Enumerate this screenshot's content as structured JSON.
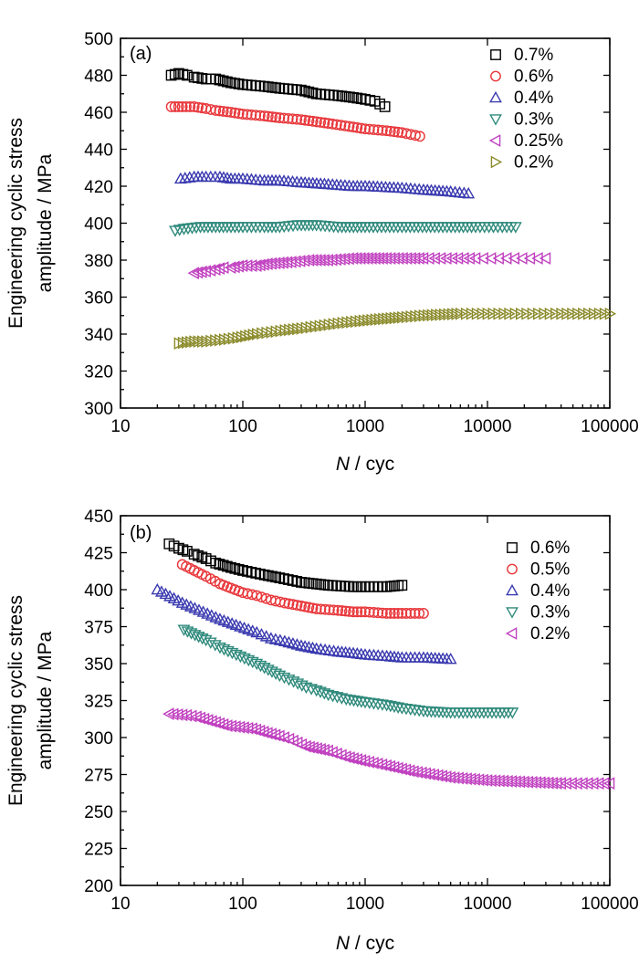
{
  "chart_data": [
    {
      "type": "scatter",
      "panel_label": "(a)",
      "xscale": "log",
      "xlim": [
        10,
        100000
      ],
      "ylim": [
        300,
        500
      ],
      "x_ticks": [
        "10",
        "100",
        "1000",
        "10000",
        "100000"
      ],
      "y_ticks": [
        "300",
        "320",
        "340",
        "360",
        "380",
        "400",
        "420",
        "440",
        "460",
        "480",
        "500"
      ],
      "ylabel_line1": "Engineering cyclic stress",
      "ylabel_line2": "amplitude / MPa",
      "xlabel_italic": "N",
      "xlabel_rest": " / cyc",
      "legend_position": "top-right",
      "series": [
        {
          "name": "0.7%",
          "marker": "square",
          "color": "#000000",
          "x": [
            26,
            30,
            35,
            40,
            50,
            60,
            80,
            100,
            150,
            200,
            300,
            400,
            600,
            800,
            1000,
            1200,
            1450
          ],
          "y": [
            480,
            481,
            480,
            479,
            478,
            478,
            476,
            475,
            474,
            473,
            472,
            470,
            469,
            468,
            467,
            466,
            463
          ]
        },
        {
          "name": "0.6%",
          "marker": "circle",
          "color": "#e8363a",
          "x": [
            26,
            32,
            40,
            50,
            60,
            80,
            100,
            150,
            200,
            300,
            500,
            800,
            1000,
            1500,
            2000,
            2800
          ],
          "y": [
            463,
            463,
            463,
            462,
            461,
            460,
            459,
            458,
            457,
            456,
            454,
            452,
            451,
            450,
            449,
            447
          ]
        },
        {
          "name": "0.4%",
          "marker": "triangle-up",
          "color": "#3a3ab0",
          "x": [
            31,
            40,
            50,
            65,
            80,
            100,
            150,
            200,
            300,
            500,
            800,
            1000,
            2000,
            3000,
            5000,
            7000
          ],
          "y": [
            424,
            425,
            425,
            425,
            424,
            424,
            423,
            423,
            422,
            421,
            420,
            420,
            419,
            418,
            417,
            416
          ]
        },
        {
          "name": "0.3%",
          "marker": "triangle-down",
          "color": "#2f8a7c",
          "x": [
            28,
            33,
            45,
            60,
            80,
            100,
            150,
            200,
            280,
            400,
            600,
            1000,
            2000,
            4000,
            8000,
            17000
          ],
          "y": [
            396,
            397,
            398,
            398,
            398,
            398,
            398,
            398,
            399,
            399,
            398,
            398,
            398,
            398,
            398,
            398
          ]
        },
        {
          "name": "0.25%",
          "marker": "triangle-left",
          "color": "#c040c0",
          "x": [
            40,
            50,
            60,
            70,
            80,
            100,
            130,
            160,
            250,
            350,
            500,
            800,
            1500,
            3000,
            8000,
            30000
          ],
          "y": [
            373,
            374,
            375,
            376,
            376,
            377,
            377,
            378,
            379,
            380,
            380,
            381,
            381,
            381,
            381,
            381
          ]
        },
        {
          "name": "0.2%",
          "marker": "triangle-right",
          "color": "#8a8a2a",
          "x": [
            30,
            40,
            50,
            70,
            90,
            130,
            170,
            220,
            300,
            650,
            900,
            1300,
            2000,
            3000,
            6000,
            15000,
            40000,
            100000
          ],
          "y": [
            335,
            336,
            336,
            337,
            338,
            340,
            341,
            342,
            343,
            346,
            347,
            348,
            349,
            350,
            351,
            351,
            351,
            351
          ]
        }
      ]
    },
    {
      "type": "scatter",
      "panel_label": "(b)",
      "xscale": "log",
      "xlim": [
        10,
        100000
      ],
      "ylim": [
        200,
        450
      ],
      "x_ticks": [
        "10",
        "100",
        "1000",
        "10000",
        "100000"
      ],
      "y_ticks": [
        "200",
        "225",
        "250",
        "275",
        "300",
        "325",
        "350",
        "375",
        "400",
        "425",
        "450"
      ],
      "ylabel_line1": "Engineering cyclic stress",
      "ylabel_line2": "amplitude / MPa",
      "xlabel_italic": "N",
      "xlabel_rest": " / cyc",
      "legend_position": "top-right",
      "series": [
        {
          "name": "0.6%",
          "marker": "square",
          "color": "#000000",
          "x": [
            25,
            30,
            35,
            40,
            50,
            60,
            80,
            100,
            150,
            200,
            300,
            500,
            800,
            1000,
            1500,
            2000
          ],
          "y": [
            431,
            428,
            426,
            424,
            421,
            418,
            415,
            413,
            410,
            408,
            405,
            403,
            402,
            402,
            402,
            403
          ]
        },
        {
          "name": "0.5%",
          "marker": "circle",
          "color": "#e8363a",
          "x": [
            32,
            50,
            65,
            80,
            100,
            130,
            170,
            220,
            300,
            400,
            600,
            800,
            1000,
            1500,
            2000,
            3000
          ],
          "y": [
            417,
            409,
            404,
            401,
            398,
            396,
            393,
            391,
            389,
            387,
            386,
            385,
            385,
            384,
            384,
            384
          ]
        },
        {
          "name": "0.4%",
          "marker": "triangle-up",
          "color": "#3a3ab0",
          "x": [
            20,
            32,
            65,
            95,
            130,
            170,
            220,
            300,
            400,
            600,
            800,
            1000,
            1500,
            2000,
            3000,
            5000
          ],
          "y": [
            400,
            391,
            380,
            375,
            371,
            367,
            365,
            362,
            360,
            358,
            357,
            356,
            355,
            354,
            354,
            353
          ]
        },
        {
          "name": "0.3%",
          "marker": "triangle-down",
          "color": "#2f8a7c",
          "x": [
            33,
            50,
            65,
            130,
            200,
            260,
            330,
            400,
            500,
            700,
            1000,
            1500,
            2000,
            3000,
            5000,
            8000,
            16000
          ],
          "y": [
            373,
            366,
            361,
            350,
            342,
            338,
            334,
            332,
            329,
            326,
            324,
            322,
            320,
            318,
            317,
            317,
            317
          ]
        },
        {
          "name": "0.2%",
          "marker": "triangle-left",
          "color": "#c040c0",
          "x": [
            25,
            35,
            42,
            75,
            120,
            160,
            200,
            240,
            330,
            500,
            700,
            1000,
            1500,
            2500,
            5000,
            10000,
            20000,
            40000,
            100000
          ],
          "y": [
            316,
            315,
            314,
            308,
            306,
            303,
            301,
            299,
            294,
            291,
            287,
            284,
            281,
            277,
            273,
            271,
            270,
            269,
            269
          ]
        }
      ]
    }
  ]
}
